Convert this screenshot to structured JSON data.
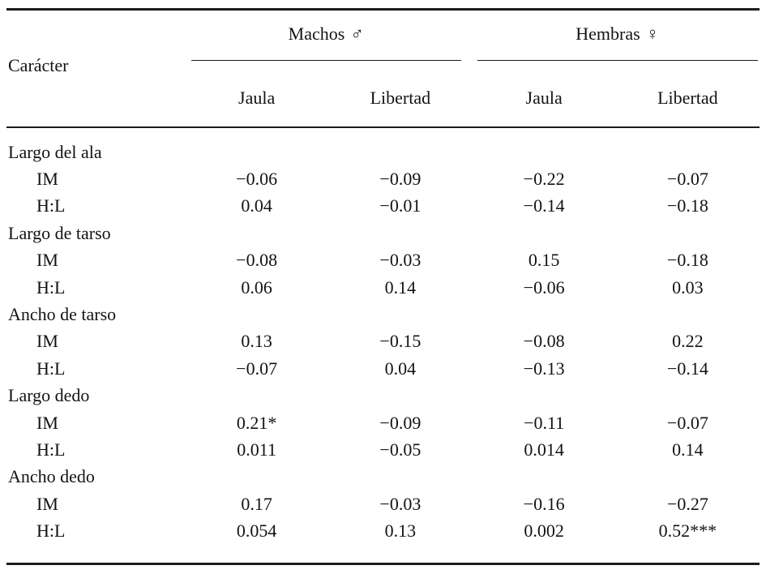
{
  "table": {
    "corner_header": "Carácter",
    "groups": [
      {
        "name": "Machos",
        "symbol": "♂",
        "subheaders": [
          "Jaula",
          "Libertad"
        ]
      },
      {
        "name": "Hembras",
        "symbol": "♀",
        "subheaders": [
          "Jaula",
          "Libertad"
        ]
      }
    ],
    "rows": [
      {
        "type": "section",
        "label": "Largo del ala"
      },
      {
        "type": "data",
        "label": "IM",
        "values": [
          "−0.06",
          "−0.09",
          "−0.22",
          "−0.07"
        ]
      },
      {
        "type": "data",
        "label": "H:L",
        "values": [
          "0.04",
          "−0.01",
          "−0.14",
          "−0.18"
        ]
      },
      {
        "type": "section",
        "label": "Largo de tarso"
      },
      {
        "type": "data",
        "label": "IM",
        "values": [
          "−0.08",
          "−0.03",
          "0.15",
          "−0.18"
        ]
      },
      {
        "type": "data",
        "label": "H:L",
        "values": [
          "0.06",
          "0.14",
          "−0.06",
          "0.03"
        ]
      },
      {
        "type": "section",
        "label": "Ancho de tarso"
      },
      {
        "type": "data",
        "label": "IM",
        "values": [
          "0.13",
          "−0.15",
          "−0.08",
          "0.22"
        ]
      },
      {
        "type": "data",
        "label": "H:L",
        "values": [
          "−0.07",
          "0.04",
          "−0.13",
          "−0.14"
        ]
      },
      {
        "type": "section",
        "label": "Largo dedo"
      },
      {
        "type": "data",
        "label": "IM",
        "values": [
          "0.21*",
          "−0.09",
          "−0.11",
          "−0.07"
        ]
      },
      {
        "type": "data",
        "label": "H:L",
        "values": [
          "0.011",
          "−0.05",
          "0.014",
          "0.14"
        ]
      },
      {
        "type": "section",
        "label": "Ancho dedo"
      },
      {
        "type": "data",
        "label": "IM",
        "values": [
          "0.17",
          "−0.03",
          "−0.16",
          "−0.27"
        ]
      },
      {
        "type": "data",
        "label": "H:L",
        "values": [
          "0.054",
          "0.13",
          "0.002",
          "0.52***"
        ]
      }
    ]
  }
}
